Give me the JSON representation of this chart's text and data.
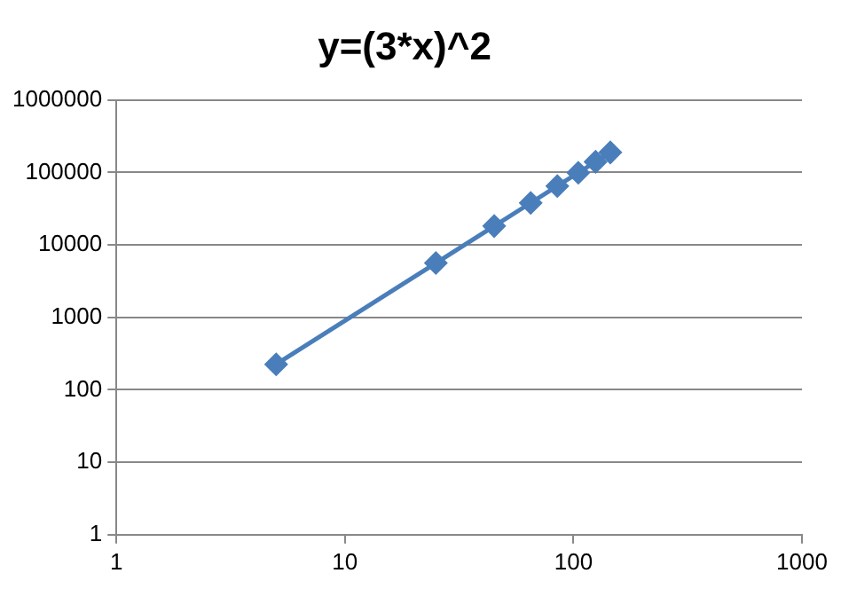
{
  "chart_data": {
    "type": "line",
    "title": "y=(3*x)^2",
    "x": [
      5,
      25,
      45,
      65,
      85,
      105,
      125,
      145
    ],
    "series": [
      {
        "color": "#4a7ebb",
        "values": [
          225,
          5625,
          18225,
          38025,
          65025,
          99225,
          140625,
          189225
        ]
      }
    ],
    "xlim": [
      1,
      1000
    ],
    "xticks": [
      1,
      10,
      100,
      1000
    ],
    "ylim": [
      1,
      1000000
    ],
    "yticks": [
      1,
      10,
      100,
      1000,
      10000,
      100000,
      1000000
    ],
    "log": "xy",
    "grid": "y",
    "legend": false,
    "marker": "diamond",
    "line_style": "solid"
  }
}
